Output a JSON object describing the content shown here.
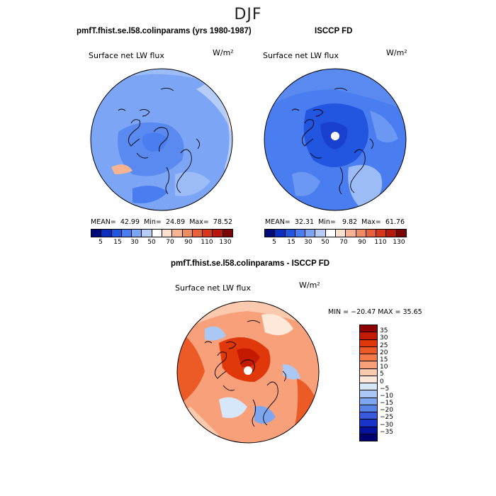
{
  "title": "DJF",
  "panel_left": {
    "header": "pmfT.fhist.se.l58.colinparams (yrs 1980-1987)",
    "variable": "Surface net LW flux",
    "units": "W/m²",
    "stats": {
      "mean_label": "MEAN=",
      "mean": "42.99",
      "min_label": "Min=",
      "min": "24.89",
      "max_label": "Max=",
      "max": "78.52"
    }
  },
  "panel_right": {
    "header": "ISCCP FD",
    "variable": "Surface net LW flux",
    "units": "W/m²",
    "stats": {
      "mean_label": "MEAN=",
      "mean": "32.31",
      "min_label": "Min=",
      "min": "9.82",
      "max_label": "Max=",
      "max": "61.76"
    }
  },
  "abs_colorbar": {
    "colors": [
      "#000a7a",
      "#0a2fc0",
      "#2255e0",
      "#4a7ef0",
      "#7ca5f5",
      "#b6cdf8",
      "#ffffff",
      "#fde0cd",
      "#f7b392",
      "#f08c62",
      "#e7623a",
      "#d7381c",
      "#b51a0d",
      "#7a0505"
    ],
    "ticks": [
      "5",
      "15",
      "30",
      "50",
      "70",
      "90",
      "110",
      "130"
    ]
  },
  "panel_diff": {
    "header": "pmfT.fhist.se.l58.colinparams - ISCCP FD",
    "variable": "Surface net LW flux",
    "units": "W/m²",
    "minmax": "MIN = −20.47  MAX =  35.65"
  },
  "diff_colorbar": {
    "colors": [
      "#8c0000",
      "#c41a00",
      "#e0380a",
      "#ec5a26",
      "#f47a48",
      "#f8a07a",
      "#fbc9ad",
      "#fde8da",
      "#d6e6fb",
      "#abc8f5",
      "#7ea6ef",
      "#5a83e8",
      "#3859dc",
      "#1a33c8",
      "#05129c",
      "#000070"
    ],
    "labels": [
      "35",
      "30",
      "25",
      "20",
      "15",
      "10",
      "5",
      "0",
      "−5",
      "−10",
      "−15",
      "−20",
      "−25",
      "−30",
      "−35"
    ]
  }
}
